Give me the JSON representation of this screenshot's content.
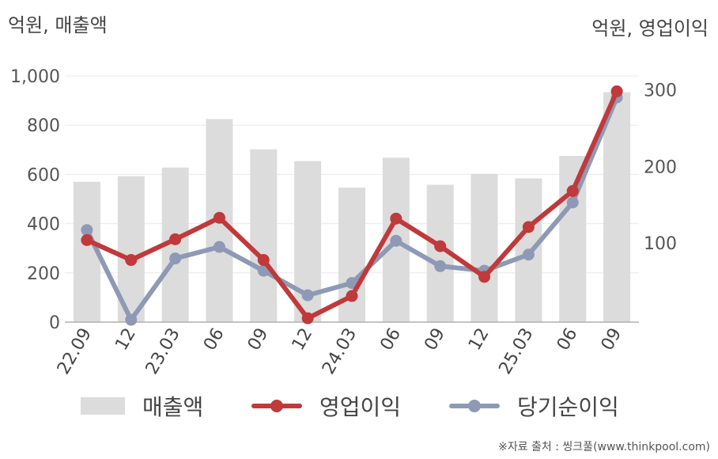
{
  "units": {
    "left": "억원, 매출액",
    "right": "억원, 영업이익"
  },
  "source": "※자료 출처 : 씽크풀(www.thinkpool.com)",
  "colors": {
    "bar": "#dcdcdc",
    "operating": "#c0393b",
    "net": "#8e9ab5",
    "grid": "#e8e8e8"
  },
  "chart_data": {
    "type": "bar",
    "categories": [
      "22.09",
      "12",
      "23.03",
      "06",
      "09",
      "12",
      "24.03",
      "06",
      "09",
      "12",
      "25.03",
      "06",
      "09"
    ],
    "y_left": {
      "ylim": [
        0,
        1000
      ],
      "ticks": [
        0,
        200,
        400,
        600,
        800,
        1000
      ],
      "tick_labels": [
        "0",
        "200",
        "400",
        "600",
        "800",
        "1,000"
      ]
    },
    "y_right": {
      "ylim": [
        -3,
        318
      ],
      "ticks": [
        100,
        200,
        300
      ],
      "tick_labels": [
        "100",
        "200",
        "300"
      ]
    },
    "grid": true,
    "legend_position": "bottom",
    "series": [
      {
        "name": "매출액",
        "kind": "bar",
        "axis": "left",
        "values": [
          570,
          593,
          628,
          825,
          702,
          654,
          546,
          668,
          558,
          602,
          584,
          675,
          934
        ]
      },
      {
        "name": "영업이익",
        "kind": "line",
        "axis": "right",
        "values": [
          104,
          78,
          105,
          133,
          78,
          2,
          31,
          132,
          96,
          56,
          121,
          168,
          298
        ]
      },
      {
        "name": "당기순이익",
        "kind": "line",
        "axis": "right",
        "values": [
          117,
          0,
          80,
          95,
          64,
          32,
          48,
          103,
          70,
          64,
          85,
          153,
          290
        ]
      }
    ]
  }
}
